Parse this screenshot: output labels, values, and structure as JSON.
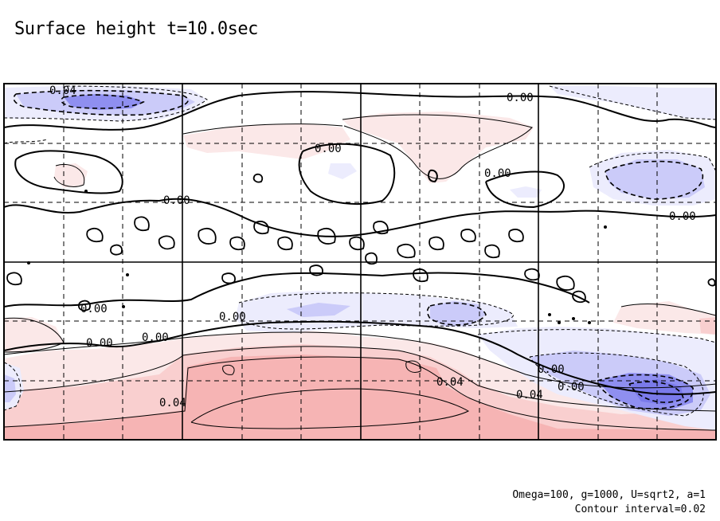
{
  "title": "Surface height t=10.0sec",
  "footer": {
    "params": "Omega=100, g=1000, U=sqrt2, a=1",
    "interval": "Contour interval=0.02"
  },
  "colors": {
    "positive_light": "#fbe8e8",
    "positive_mid": "#f9cfcf",
    "positive_strong": "#f6b4b4",
    "negative_light": "#ececfd",
    "negative_mid": "#cbcbf9",
    "negative_strong": "#8f8ff0",
    "contour": "#000000"
  },
  "chart_data": {
    "type": "contour",
    "field": "surface height",
    "time_sec": 10.0,
    "contour_interval": 0.02,
    "projection": "equirectangular",
    "grid": true,
    "labeled_levels": [
      "0.04",
      "0.00",
      "0.00",
      "0.00",
      "0.00",
      "0.00",
      "0.00",
      "0.00",
      "0.00",
      "0.00",
      "0.00",
      "0.04",
      "0.04",
      "0.04",
      "0.00"
    ],
    "features": [
      {
        "sign": "negative",
        "lon": 30,
        "lat": 60,
        "peak": -0.06
      },
      {
        "sign": "negative",
        "lon": 330,
        "lat": 30,
        "peak": -0.04
      },
      {
        "sign": "negative",
        "lon": 330,
        "lat": -75,
        "peak": -0.1
      },
      {
        "sign": "negative",
        "lon": 190,
        "lat": -25,
        "peak": -0.02
      },
      {
        "sign": "positive",
        "lon": 120,
        "lat": -70,
        "peak": 0.06
      },
      {
        "sign": "positive",
        "lon": 210,
        "lat": 35,
        "peak": 0.02
      }
    ]
  }
}
